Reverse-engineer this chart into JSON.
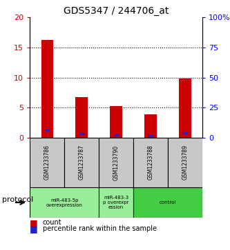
{
  "title": "GDS5347 / 244706_at",
  "samples": [
    "GSM1233786",
    "GSM1233787",
    "GSM1233790",
    "GSM1233788",
    "GSM1233789"
  ],
  "count_values": [
    16.3,
    6.7,
    5.2,
    3.9,
    9.8
  ],
  "percentile_values": [
    6.2,
    3.2,
    2.0,
    1.6,
    4.0
  ],
  "ylim_left": [
    0,
    20
  ],
  "ylim_right": [
    0,
    100
  ],
  "left_ticks": [
    0,
    5,
    10,
    15,
    20
  ],
  "right_ticks": [
    0,
    25,
    50,
    75,
    100
  ],
  "left_tick_labels": [
    "0",
    "5",
    "10",
    "15",
    "20"
  ],
  "right_tick_labels": [
    "0",
    "25",
    "50",
    "75",
    "100%"
  ],
  "bar_color_red": "#cc0000",
  "bar_color_blue": "#2222cc",
  "bar_width": 0.35,
  "protocol_label": "protocol",
  "legend_count_label": "count",
  "legend_pct_label": "percentile rank within the sample",
  "background_color": "#ffffff",
  "sample_label_color": "#c8c8c8",
  "group1_color": "#99ee99",
  "group2_color": "#44cc44",
  "groups": [
    {
      "start": 0,
      "end": 1,
      "label": "miR-483-5p\noverexpression",
      "color": "#99ee99"
    },
    {
      "start": 2,
      "end": 2,
      "label": "miR-483-3\np overexpr\nession",
      "color": "#99ee99"
    },
    {
      "start": 3,
      "end": 4,
      "label": "control",
      "color": "#44cc44"
    }
  ]
}
